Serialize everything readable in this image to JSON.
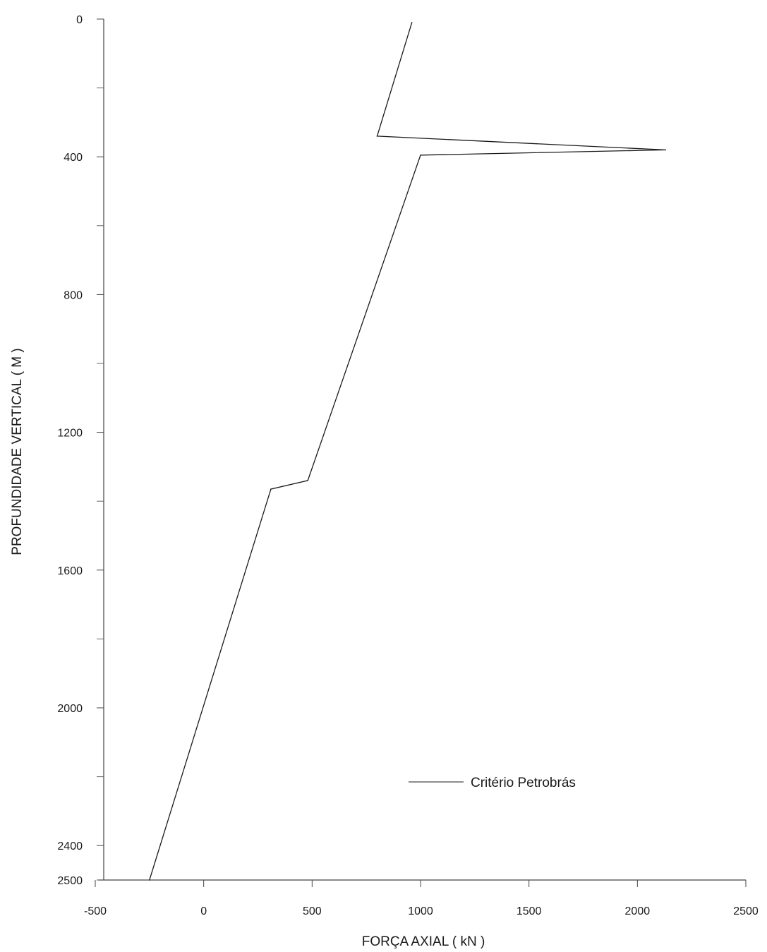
{
  "chart_data": {
    "type": "line",
    "title": "",
    "xlabel": "FORÇA AXIAL  ( kN )",
    "ylabel": "PROFUNDIDADE VERTICAL  ( M )",
    "xlim": [
      -500,
      2500
    ],
    "ylim": [
      2500,
      0
    ],
    "y_inverted": true,
    "x_ticks": [
      -500,
      0,
      500,
      1000,
      1500,
      2000,
      2500
    ],
    "x_tick_labels": [
      "-500",
      "0",
      "500",
      "1000",
      "1500",
      "2000",
      "2500"
    ],
    "y_ticks": [
      0,
      400,
      800,
      1200,
      1600,
      2000,
      2400,
      2500
    ],
    "y_tick_labels": [
      "0",
      "400",
      "800",
      "1200",
      "1600",
      "2000",
      "2400",
      "2500"
    ],
    "y_minor_ticks": [
      200,
      600,
      1000,
      1400,
      1800,
      2200
    ],
    "grid": false,
    "legend_position": "lower-right",
    "line_color": "#1a1a1a",
    "series": [
      {
        "name": "Critério Petrobrás",
        "points": [
          [
            960,
            10
          ],
          [
            800,
            340
          ],
          [
            2130,
            380
          ],
          [
            1000,
            395
          ],
          [
            480,
            1340
          ],
          [
            310,
            1365
          ],
          [
            -250,
            2500
          ]
        ]
      }
    ]
  }
}
